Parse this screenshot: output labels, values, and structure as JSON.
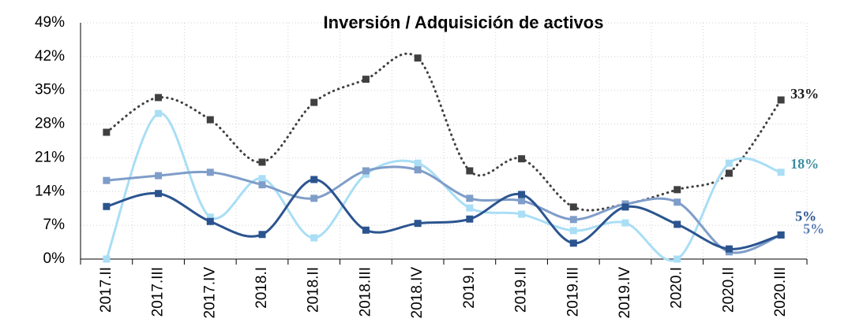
{
  "chart_data": {
    "type": "line",
    "title": "Inversión / Adquisición de activos",
    "categories": [
      "2017.II",
      "2017.III",
      "2017.IV",
      "2018.I",
      "2018.II",
      "2018.III",
      "2018.IV",
      "2019.I",
      "2019.II",
      "2019.III",
      "2019.IV",
      "2020.I",
      "2020.II",
      "2020.III"
    ],
    "ylim": [
      0,
      49
    ],
    "yticks": [
      {
        "value": 0,
        "label": "0%"
      },
      {
        "value": 7,
        "label": "7%"
      },
      {
        "value": 14,
        "label": "14%"
      },
      {
        "value": 21,
        "label": "21%"
      },
      {
        "value": 28,
        "label": "28%"
      },
      {
        "value": 35,
        "label": "35%"
      },
      {
        "value": 42,
        "label": "42%"
      },
      {
        "value": 49,
        "label": "49%"
      }
    ],
    "grid": true,
    "series": [
      {
        "color": "#404040",
        "dashed": true,
        "label_color": "#1a1a1a",
        "values": [
          26.3,
          33.5,
          28.9,
          20.1,
          32.5,
          37.3,
          41.7,
          18.3,
          20.8,
          10.8,
          11.4,
          14.4,
          17.8,
          33
        ],
        "value_labels": [
          null,
          null,
          null,
          null,
          null,
          null,
          null,
          null,
          null,
          null,
          null,
          null,
          null,
          "33%"
        ]
      },
      {
        "color": "#a9def5",
        "label_color": "#3b8c9e",
        "values": [
          0,
          30.2,
          8.7,
          16.7,
          4.4,
          17.6,
          19.9,
          10.6,
          9.3,
          5.9,
          7.5,
          0,
          19.9,
          18
        ],
        "value_labels": [
          null,
          null,
          null,
          null,
          null,
          null,
          null,
          null,
          null,
          null,
          null,
          null,
          null,
          "18%"
        ]
      },
      {
        "color": "#7f9dc9",
        "label_color": "#5b7fb5",
        "values": [
          16.3,
          17.3,
          18,
          15.4,
          12.6,
          18.3,
          18.5,
          12.6,
          12.1,
          8.2,
          11.4,
          11.8,
          1.5,
          5
        ],
        "value_labels": [
          null,
          null,
          null,
          null,
          null,
          null,
          null,
          null,
          null,
          null,
          null,
          null,
          null,
          "5%"
        ]
      },
      {
        "color": "#2b548f",
        "label_color": "#2b548f",
        "values": [
          10.9,
          13.6,
          7.8,
          5.1,
          16.5,
          6,
          7.4,
          8.3,
          13.4,
          3.3,
          10.8,
          7.2,
          2.1,
          5
        ],
        "value_labels": [
          null,
          null,
          null,
          null,
          null,
          null,
          null,
          null,
          null,
          null,
          null,
          null,
          null,
          "5%"
        ]
      }
    ]
  }
}
